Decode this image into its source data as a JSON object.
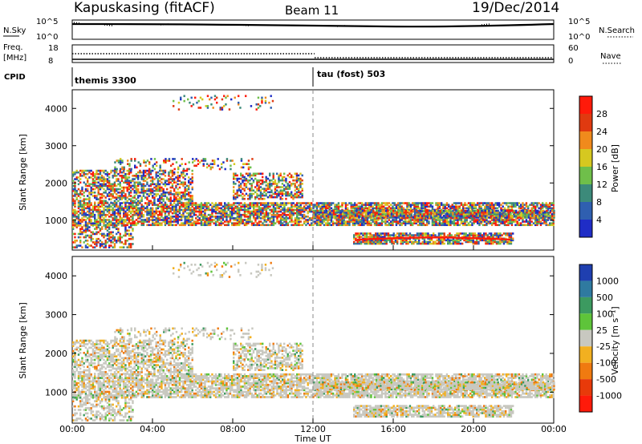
{
  "header": {
    "station": "Kapuskasing (fitACF)",
    "beam": "Beam 11",
    "date": "19/Dec/2014"
  },
  "top_panels": {
    "nsky_label": "N.Sky",
    "nsky_ticks": [
      "10^5",
      "10^0"
    ],
    "nsearch_label": "N.Search",
    "nsearch_ticks": [
      "10^5",
      "10^0"
    ],
    "freq_label_1": "Freq.",
    "freq_label_2": "[MHz]",
    "freq_ticks": [
      "18",
      "8"
    ],
    "nave_label": "Nave",
    "nave_ticks": [
      "60",
      "0"
    ],
    "cpid_label": "CPID",
    "cpid_segments": [
      {
        "name": "themis 3300",
        "start_hour": 0
      },
      {
        "name": "tau (fost) 503",
        "start_hour": 12
      }
    ]
  },
  "chart_data": [
    {
      "type": "heatmap",
      "name": "power",
      "title": "",
      "xlabel": "",
      "ylabel": "Slant Range [km]",
      "yticks": [
        "1000",
        "2000",
        "3000",
        "4000"
      ],
      "colorbar_label": "Power [dB]",
      "colorbar_ticks": [
        "4",
        "8",
        "12",
        "16",
        "20",
        "24",
        "28"
      ],
      "colors": [
        "#1f2dc6",
        "#2f5fb0",
        "#3c8a7a",
        "#6fbf4a",
        "#d6c820",
        "#f08a1c",
        "#e03a10",
        "#ff1a0a"
      ]
    },
    {
      "type": "heatmap",
      "name": "velocity",
      "title": "",
      "xlabel": "Time UT",
      "ylabel": "Slant Range [km]",
      "yticks": [
        "1000",
        "2000",
        "3000",
        "4000"
      ],
      "xticks": [
        "00:00",
        "04:00",
        "08:00",
        "12:00",
        "16:00",
        "20:00",
        "00:00"
      ],
      "colorbar_label": "Velocity [m s⁻¹]",
      "colorbar_ticks": [
        "1000",
        "500",
        "100",
        "25",
        "-25",
        "-100",
        "-500",
        "-1000"
      ],
      "colors": [
        "#1f3fb0",
        "#2f7aa0",
        "#3c9a60",
        "#5ec43a",
        "#c8c8c0",
        "#f2b020",
        "#f07a10",
        "#e83a0a",
        "#ff1a0a"
      ]
    }
  ]
}
